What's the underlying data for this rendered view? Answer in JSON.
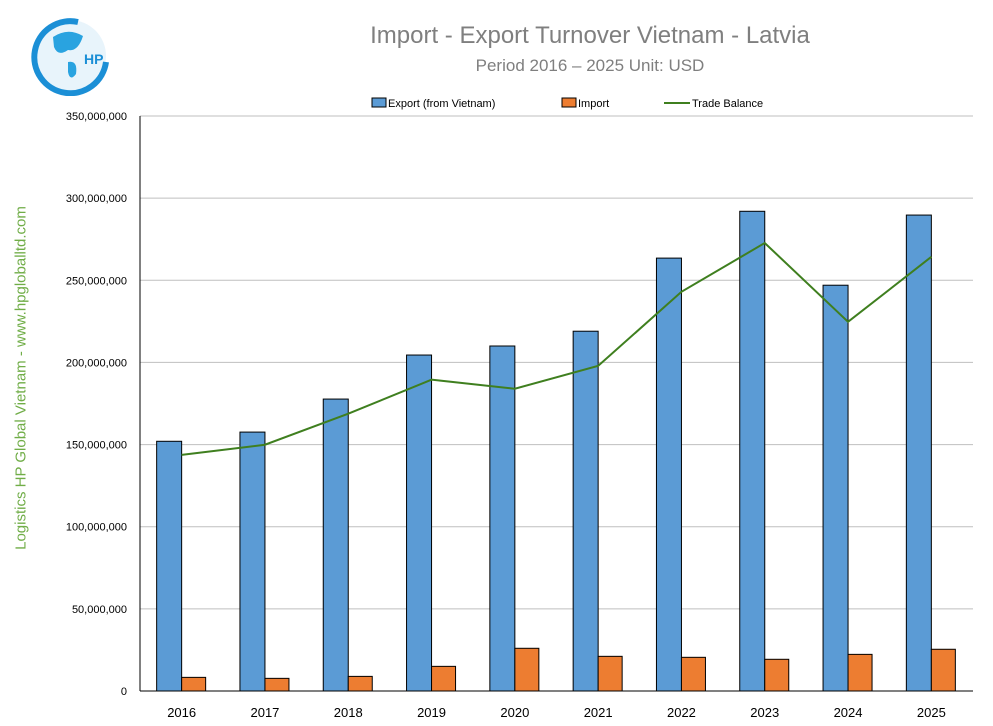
{
  "logo": {
    "text": "HP"
  },
  "side_label": "Logistics HP Global Vietnam - www.hpgloballtd.com",
  "chart_data": {
    "type": "bar",
    "title": "Import - Export Turnover Vietnam - Latvia",
    "subtitle": "Period 2016 – 2025  Unit: USD",
    "categories": [
      "2016",
      "2017",
      "2018",
      "2019",
      "2020",
      "2021",
      "2022",
      "2023",
      "2024",
      "2025"
    ],
    "series": [
      {
        "name": "Export (from Vietnam)",
        "type": "bar",
        "color": "#5b9bd5",
        "values": [
          152000000,
          157600000,
          177700000,
          204500000,
          210000000,
          219000000,
          263500000,
          292000000,
          247000000,
          289700000
        ]
      },
      {
        "name": "Import",
        "type": "bar",
        "color": "#ed7d31",
        "values": [
          8300000,
          7700000,
          8900000,
          15000000,
          26000000,
          21100000,
          20500000,
          19300000,
          22300000,
          25400000
        ]
      },
      {
        "name": "Trade Balance",
        "type": "line",
        "color": "#3f7f1f",
        "values": [
          143700000,
          149900000,
          168800000,
          189500000,
          184000000,
          197900000,
          243000000,
          272700000,
          224700000,
          264300000
        ]
      }
    ],
    "yticks": [
      "0",
      "50,000,000",
      "100,000,000",
      "150,000,000",
      "200,000,000",
      "250,000,000",
      "300,000,000",
      "350,000,000"
    ],
    "ylim": [
      0,
      350000000
    ],
    "grid": true,
    "legend": "top"
  }
}
